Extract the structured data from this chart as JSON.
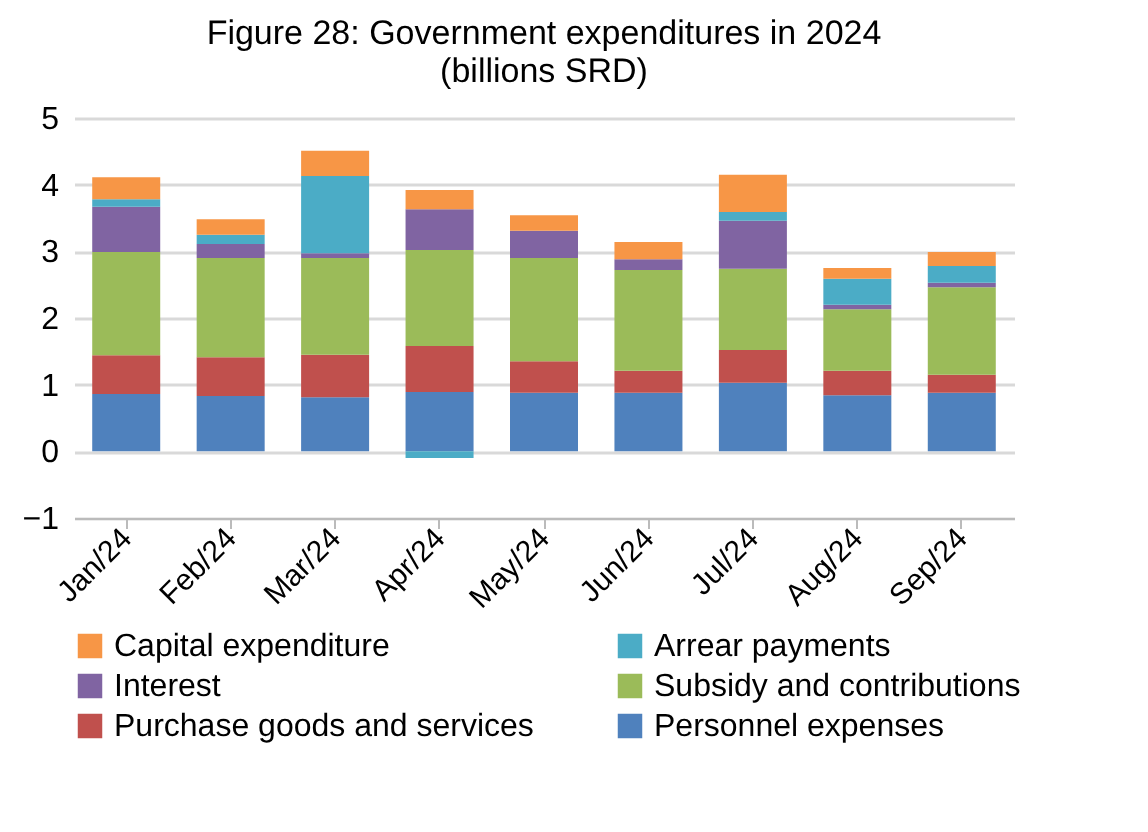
{
  "chart_data": {
    "type": "bar",
    "stacked": true,
    "title": "Figure 28: Government expenditures in 2024",
    "subtitle": "(billions SRD)",
    "categories": [
      "Jan/24",
      "Feb/24",
      "Mar/24",
      "Apr/24",
      "May/24",
      "Jun/24",
      "Jul/24",
      "Aug/24",
      "Sep/24"
    ],
    "series": [
      {
        "name": "Personnel expenses",
        "color": "#4f81bd",
        "values": [
          0.86,
          0.83,
          0.81,
          0.89,
          0.88,
          0.88,
          1.03,
          0.84,
          0.88
        ]
      },
      {
        "name": "Purchase goods and services",
        "color": "#c0504d",
        "values": [
          0.58,
          0.58,
          0.64,
          0.69,
          0.47,
          0.33,
          0.49,
          0.37,
          0.27
        ]
      },
      {
        "name": "Subsidy and contributions",
        "color": "#9bbb59",
        "values": [
          1.55,
          1.49,
          1.45,
          1.44,
          1.55,
          1.51,
          1.22,
          0.92,
          1.31
        ]
      },
      {
        "name": "Interest",
        "color": "#8064a2",
        "values": [
          0.68,
          0.21,
          0.07,
          0.61,
          0.41,
          0.16,
          0.72,
          0.07,
          0.07
        ]
      },
      {
        "name": "Arrear payments",
        "color": "#4bacc6",
        "values": [
          0.11,
          0.14,
          1.16,
          -0.1,
          0,
          0,
          0.13,
          0.39,
          0.25
        ]
      },
      {
        "name": "Capital expenditure",
        "color": "#f79646",
        "values": [
          0.33,
          0.23,
          0.38,
          0.29,
          0.23,
          0.26,
          0.56,
          0.16,
          0.21
        ]
      }
    ],
    "ylim": [
      -1,
      5
    ],
    "yticks": [
      -1,
      0,
      1,
      2,
      3,
      4,
      5
    ],
    "grid": "y",
    "legend": "bottom"
  }
}
